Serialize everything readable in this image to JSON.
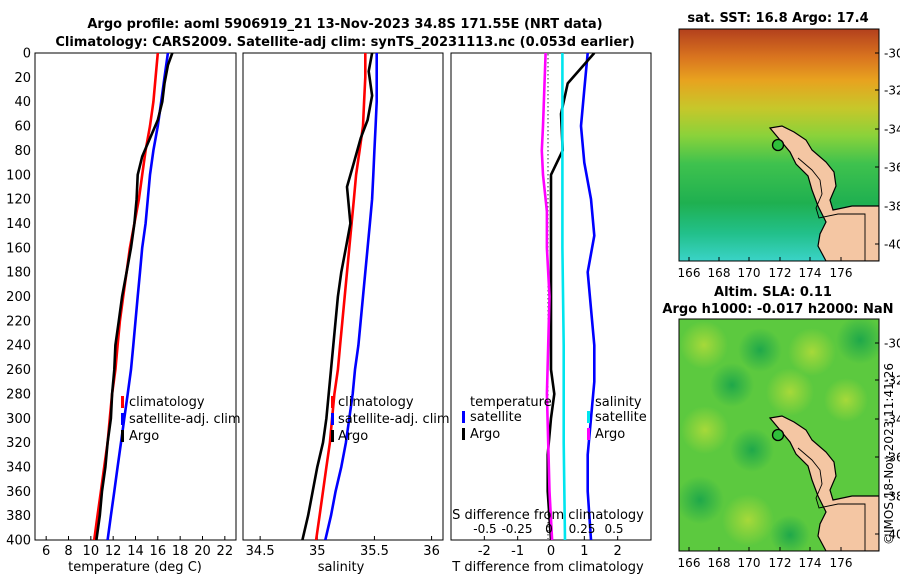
{
  "header": {
    "line1": "Argo profile: aoml 5906919_21 13-Nov-2023 34.8S 171.55E (NRT data)",
    "line2": "Climatology: CARS2009. Satellite-adj clim: synTS_20231113.nc (0.053d earlier)"
  },
  "watermark": "©IMOS 18-Nov-2023 11:41:26",
  "colors": {
    "climatology": "#ff0000",
    "satellite": "#0000ff",
    "argo": "#000000",
    "sat_salinity": "#00e5ee",
    "argo_salinity_diff": "#ff00ff"
  },
  "depth_axis": {
    "range": [
      0,
      400
    ],
    "ticks": [
      0,
      20,
      40,
      60,
      80,
      100,
      120,
      140,
      160,
      180,
      200,
      220,
      240,
      260,
      280,
      300,
      320,
      340,
      360,
      380,
      400
    ]
  },
  "chart_data": [
    {
      "type": "line",
      "name": "temperature",
      "xlabel": "temperature (deg C)",
      "xlim": [
        5,
        23
      ],
      "xticks": [
        6,
        8,
        10,
        12,
        14,
        16,
        18,
        20,
        22
      ],
      "legend": [
        "climatology",
        "satellite-adj. clim",
        "Argo"
      ],
      "series": [
        {
          "name": "climatology",
          "color": "#ff0000",
          "points": [
            [
              16.0,
              0
            ],
            [
              15.8,
              20
            ],
            [
              15.6,
              40
            ],
            [
              15.3,
              60
            ],
            [
              14.9,
              80
            ],
            [
              14.6,
              100
            ],
            [
              14.3,
              120
            ],
            [
              13.9,
              140
            ],
            [
              13.5,
              160
            ],
            [
              13.2,
              180
            ],
            [
              12.9,
              200
            ],
            [
              12.6,
              220
            ],
            [
              12.4,
              240
            ],
            [
              12.2,
              260
            ],
            [
              11.9,
              280
            ],
            [
              11.7,
              300
            ],
            [
              11.5,
              320
            ],
            [
              11.2,
              340
            ],
            [
              10.9,
              360
            ],
            [
              10.6,
              380
            ],
            [
              10.3,
              400
            ]
          ]
        },
        {
          "name": "satellite-adj. clim",
          "color": "#0000ff",
          "points": [
            [
              16.9,
              0
            ],
            [
              16.6,
              20
            ],
            [
              16.3,
              40
            ],
            [
              16.0,
              60
            ],
            [
              15.6,
              80
            ],
            [
              15.3,
              100
            ],
            [
              15.1,
              120
            ],
            [
              14.9,
              140
            ],
            [
              14.6,
              160
            ],
            [
              14.4,
              180
            ],
            [
              14.2,
              200
            ],
            [
              14.0,
              220
            ],
            [
              13.8,
              240
            ],
            [
              13.6,
              260
            ],
            [
              13.3,
              280
            ],
            [
              13.0,
              300
            ],
            [
              12.7,
              320
            ],
            [
              12.4,
              340
            ],
            [
              12.1,
              360
            ],
            [
              11.8,
              380
            ],
            [
              11.5,
              400
            ]
          ]
        },
        {
          "name": "Argo",
          "color": "#000000",
          "points": [
            [
              17.3,
              0
            ],
            [
              16.9,
              10
            ],
            [
              16.6,
              25
            ],
            [
              16.4,
              40
            ],
            [
              16.0,
              55
            ],
            [
              15.3,
              70
            ],
            [
              14.6,
              85
            ],
            [
              14.2,
              100
            ],
            [
              14.1,
              120
            ],
            [
              13.9,
              140
            ],
            [
              13.6,
              160
            ],
            [
              13.2,
              180
            ],
            [
              12.8,
              200
            ],
            [
              12.5,
              220
            ],
            [
              12.2,
              240
            ],
            [
              12.1,
              260
            ],
            [
              11.9,
              280
            ],
            [
              11.8,
              300
            ],
            [
              11.5,
              320
            ],
            [
              11.3,
              340
            ],
            [
              11.0,
              360
            ],
            [
              10.8,
              380
            ],
            [
              10.5,
              400
            ]
          ]
        }
      ]
    },
    {
      "type": "line",
      "name": "salinity",
      "xlabel": "salinity",
      "xlim": [
        34.35,
        36.1
      ],
      "xticks": [
        34.5,
        35,
        35.5,
        36
      ],
      "ticklabels": [
        "34.5",
        "35",
        "35.5",
        "36"
      ],
      "legend": [
        "climatology",
        "satellite-adj. clim",
        "Argo"
      ],
      "series": [
        {
          "name": "climatology",
          "color": "#ff0000",
          "points": [
            [
              35.42,
              0
            ],
            [
              35.42,
              20
            ],
            [
              35.41,
              40
            ],
            [
              35.4,
              60
            ],
            [
              35.37,
              80
            ],
            [
              35.34,
              100
            ],
            [
              35.32,
              120
            ],
            [
              35.3,
              140
            ],
            [
              35.28,
              160
            ],
            [
              35.26,
              180
            ],
            [
              35.24,
              200
            ],
            [
              35.22,
              220
            ],
            [
              35.2,
              240
            ],
            [
              35.18,
              260
            ],
            [
              35.15,
              280
            ],
            [
              35.13,
              300
            ],
            [
              35.11,
              320
            ],
            [
              35.08,
              340
            ],
            [
              35.05,
              360
            ],
            [
              35.02,
              380
            ],
            [
              34.99,
              400
            ]
          ]
        },
        {
          "name": "satellite-adj. clim",
          "color": "#0000ff",
          "points": [
            [
              35.52,
              0
            ],
            [
              35.52,
              20
            ],
            [
              35.52,
              40
            ],
            [
              35.51,
              60
            ],
            [
              35.5,
              80
            ],
            [
              35.49,
              100
            ],
            [
              35.48,
              120
            ],
            [
              35.46,
              140
            ],
            [
              35.44,
              160
            ],
            [
              35.42,
              180
            ],
            [
              35.4,
              200
            ],
            [
              35.38,
              220
            ],
            [
              35.36,
              240
            ],
            [
              35.33,
              260
            ],
            [
              35.31,
              280
            ],
            [
              35.28,
              300
            ],
            [
              35.25,
              320
            ],
            [
              35.21,
              340
            ],
            [
              35.16,
              360
            ],
            [
              35.12,
              380
            ],
            [
              35.07,
              400
            ]
          ]
        },
        {
          "name": "Argo",
          "color": "#000000",
          "points": [
            [
              35.48,
              0
            ],
            [
              35.45,
              15
            ],
            [
              35.48,
              35
            ],
            [
              35.44,
              55
            ],
            [
              35.38,
              70
            ],
            [
              35.32,
              90
            ],
            [
              35.26,
              110
            ],
            [
              35.29,
              140
            ],
            [
              35.25,
              160
            ],
            [
              35.21,
              180
            ],
            [
              35.18,
              200
            ],
            [
              35.16,
              220
            ],
            [
              35.14,
              240
            ],
            [
              35.12,
              260
            ],
            [
              35.1,
              280
            ],
            [
              35.08,
              300
            ],
            [
              35.05,
              320
            ],
            [
              35.0,
              340
            ],
            [
              34.96,
              360
            ],
            [
              34.92,
              380
            ],
            [
              34.87,
              400
            ]
          ]
        }
      ]
    },
    {
      "type": "line",
      "name": "difference from climatology",
      "xlabel": "T difference from climatology",
      "xlim": [
        -3,
        3
      ],
      "xticks": [
        -2,
        -1,
        0,
        1,
        2
      ],
      "s_axis_label": "S difference from climatology",
      "s_ticks": [
        "-0.5",
        "-0.25",
        "0",
        "0.25",
        "0.5"
      ],
      "legend_groups": [
        {
          "title": "temperature",
          "items": [
            "satellite",
            "Argo"
          ]
        },
        {
          "title": "salinity",
          "items": [
            "satellite",
            "Argo"
          ]
        }
      ],
      "series": [
        {
          "name": "T satellite",
          "color": "#0000ff",
          "points": [
            [
              1.1,
              0
            ],
            [
              1.0,
              30
            ],
            [
              0.9,
              60
            ],
            [
              1.0,
              90
            ],
            [
              1.2,
              120
            ],
            [
              1.3,
              150
            ],
            [
              1.1,
              180
            ],
            [
              1.2,
              210
            ],
            [
              1.3,
              240
            ],
            [
              1.3,
              270
            ],
            [
              1.2,
              300
            ],
            [
              1.1,
              330
            ],
            [
              1.1,
              360
            ],
            [
              1.2,
              400
            ]
          ]
        },
        {
          "name": "T Argo",
          "color": "#000000",
          "points": [
            [
              1.3,
              0
            ],
            [
              0.5,
              25
            ],
            [
              0.3,
              50
            ],
            [
              0.35,
              80
            ],
            [
              0.0,
              100
            ],
            [
              0.0,
              140
            ],
            [
              0.0,
              180
            ],
            [
              0.0,
              220
            ],
            [
              0.0,
              260
            ],
            [
              0.1,
              280
            ],
            [
              0.0,
              300
            ],
            [
              -0.1,
              330
            ],
            [
              -0.1,
              360
            ],
            [
              0.0,
              400
            ]
          ]
        },
        {
          "name": "S satellite",
          "color": "#00e5ee",
          "points": [
            [
              0.1,
              0
            ],
            [
              0.1,
              40
            ],
            [
              0.1,
              80
            ],
            [
              0.1,
              160
            ],
            [
              0.11,
              240
            ],
            [
              0.11,
              320
            ],
            [
              0.12,
              400
            ]
          ]
        },
        {
          "name": "S Argo",
          "color": "#ff00ff",
          "points": [
            [
              -0.03,
              0
            ],
            [
              -0.04,
              30
            ],
            [
              -0.05,
              60
            ],
            [
              -0.06,
              80
            ],
            [
              -0.05,
              100
            ],
            [
              -0.02,
              130
            ],
            [
              -0.02,
              160
            ],
            [
              0.0,
              200
            ],
            [
              -0.01,
              240
            ],
            [
              -0.02,
              280
            ],
            [
              -0.01,
              320
            ],
            [
              0.0,
              360
            ],
            [
              0.02,
              400
            ]
          ]
        }
      ]
    }
  ],
  "maps": [
    {
      "title": "sat. SST: 16.8 Argo: 17.4",
      "lat_ticks": [
        "-30",
        "-32",
        "-34",
        "-36",
        "-38",
        "-40"
      ],
      "lon_ticks": [
        "166",
        "168",
        "170",
        "172",
        "174",
        "176"
      ]
    },
    {
      "title_line1": "Altim. SLA: 0.11",
      "title_line2": "Argo h1000: -0.017 h2000: NaN",
      "lat_ticks": [
        "-30",
        "-32",
        "-34",
        "-36",
        "-38",
        "-40"
      ],
      "lon_ticks": [
        "166",
        "168",
        "170",
        "172",
        "174",
        "176"
      ]
    }
  ]
}
